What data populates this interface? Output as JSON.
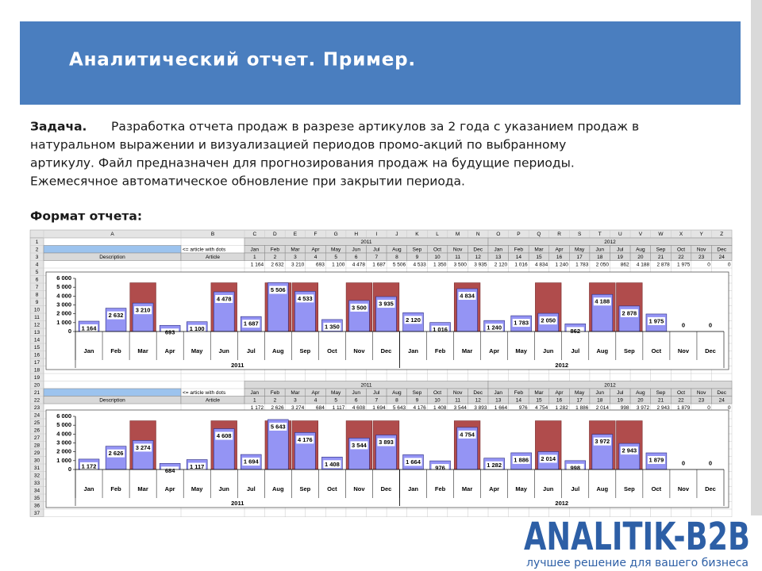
{
  "header": {
    "title": "Аналитический отчет. Пример."
  },
  "task": {
    "label": "Задача.",
    "lines": [
      "Разработка отчета продаж в разрезе артикулов за 2 года с указанием продаж в",
      "натуральном выражении и визуализацией периодов промо-акций по выбранному",
      "артикулу. Файл предназначен для прогнозирования продаж на будущие периоды.",
      "Ежемесячное автоматическое обновление при закрытии периода."
    ]
  },
  "format_label": "Формат отчета:",
  "spreadsheet": {
    "columns": [
      "A",
      "B",
      "C",
      "D",
      "E",
      "F",
      "G",
      "H",
      "I",
      "J",
      "K",
      "L",
      "M",
      "N",
      "O",
      "P",
      "Q",
      "R",
      "S",
      "T",
      "U",
      "V",
      "W",
      "X",
      "Y",
      "Z"
    ],
    "row_numbers": [
      1,
      2,
      3,
      4,
      5,
      6,
      7,
      8,
      9,
      10,
      11,
      12,
      13,
      14,
      15,
      16,
      17,
      18,
      19,
      20,
      21,
      22,
      23,
      24,
      25,
      26,
      27,
      28,
      29,
      30,
      31,
      32,
      33,
      34,
      35,
      36,
      37
    ],
    "blocks": [
      {
        "note": "<= article with dots",
        "description": "Description",
        "article": "Article",
        "periods": [
          1,
          2,
          3,
          4,
          5,
          6,
          7,
          8,
          9,
          10,
          11,
          12,
          13,
          14,
          15,
          16,
          17,
          18,
          19,
          20,
          21,
          22,
          23,
          24
        ]
      },
      {
        "note": "<= article with dots",
        "description": "Description",
        "article": "Article",
        "periods": [
          1,
          2,
          3,
          4,
          5,
          6,
          7,
          8,
          9,
          10,
          11,
          12,
          13,
          14,
          15,
          16,
          17,
          18,
          19,
          20,
          21,
          22,
          23,
          24
        ]
      }
    ]
  },
  "chart_data": [
    {
      "type": "bar",
      "categories": [
        "Jan",
        "Feb",
        "Mar",
        "Apr",
        "May",
        "Jun",
        "Jul",
        "Aug",
        "Sep",
        "Oct",
        "Nov",
        "Dec",
        "Jan",
        "Feb",
        "Mar",
        "Apr",
        "May",
        "Jun",
        "Jul",
        "Aug",
        "Sep",
        "Oct",
        "Nov",
        "Dec"
      ],
      "groups": [
        "2011",
        "2012"
      ],
      "ylim": [
        0,
        6000
      ],
      "yticks": [
        0,
        {
          "value": 1000,
          "label": "1 000"
        },
        {
          "value": 2000,
          "label": "2 000"
        },
        {
          "value": 3000,
          "label": "3 000"
        },
        {
          "value": 4000,
          "label": "4 000"
        },
        {
          "value": 5000,
          "label": "5 000"
        },
        {
          "value": 6000,
          "label": "6 000"
        }
      ],
      "series": [
        {
          "color": "#b04c4c",
          "values": [
            0,
            0,
            5500,
            0,
            0,
            5500,
            0,
            5500,
            5500,
            0,
            5500,
            5500,
            0,
            0,
            5500,
            0,
            0,
            5500,
            0,
            5500,
            5500,
            0,
            0,
            0
          ]
        },
        {
          "color": "#9494f4",
          "values": [
            1164,
            2632,
            3210,
            693,
            1100,
            4478,
            1687,
            5506,
            4533,
            1350,
            3500,
            3935,
            2120,
            1016,
            4834,
            1240,
            1783,
            2050,
            862,
            4188,
            2878,
            1975,
            0,
            0
          ],
          "value_labels": [
            "1 164",
            "2 632",
            "3 210",
            "693",
            "1 100",
            "4 478",
            "1 687",
            "5 506",
            "4 533",
            "1 350",
            "3 500",
            "3 935",
            "2 120",
            "1 016",
            "4 834",
            "1 240",
            "1 783",
            "2 050",
            "862",
            "4 188",
            "2 878",
            "1 975",
            "0",
            "0"
          ]
        }
      ]
    },
    {
      "type": "bar",
      "categories": [
        "Jan",
        "Feb",
        "Mar",
        "Apr",
        "May",
        "Jun",
        "Jul",
        "Aug",
        "Sep",
        "Oct",
        "Nov",
        "Dec",
        "Jan",
        "Feb",
        "Mar",
        "Apr",
        "May",
        "Jun",
        "Jul",
        "Aug",
        "Sep",
        "Oct",
        "Nov",
        "Dec"
      ],
      "groups": [
        "2011",
        "2012"
      ],
      "ylim": [
        0,
        6000
      ],
      "yticks": [
        0,
        {
          "value": 1000,
          "label": "1 000"
        },
        {
          "value": 2000,
          "label": "2 000"
        },
        {
          "value": 3000,
          "label": "3 000"
        },
        {
          "value": 4000,
          "label": "4 000"
        },
        {
          "value": 5000,
          "label": "5 000"
        },
        {
          "value": 6000,
          "label": "6 000"
        }
      ],
      "series": [
        {
          "color": "#b04c4c",
          "values": [
            0,
            0,
            5500,
            0,
            0,
            5500,
            0,
            5500,
            5500,
            0,
            5500,
            5500,
            0,
            0,
            5500,
            0,
            0,
            5500,
            0,
            5500,
            5500,
            0,
            0,
            0
          ]
        },
        {
          "color": "#9494f4",
          "values": [
            1172,
            2626,
            3274,
            684,
            1117,
            4608,
            1694,
            5643,
            4176,
            1408,
            3544,
            3893,
            1664,
            976,
            4754,
            1282,
            1886,
            2014,
            998,
            3972,
            2943,
            1879,
            0,
            0
          ],
          "value_labels": [
            "1 172",
            "2 626",
            "3 274",
            "684",
            "1 117",
            "4 608",
            "1 694",
            "5 643",
            "4 176",
            "1 408",
            "3 544",
            "3 893",
            "1 664",
            "976",
            "4 754",
            "1 282",
            "1 886",
            "2 014",
            "998",
            "3 972",
            "2 943",
            "1 879",
            "0",
            "0"
          ]
        }
      ]
    }
  ],
  "logo": {
    "brand": "ANALITIK-B2B",
    "tagline": "лучшее решение для вашего бизнеса"
  }
}
